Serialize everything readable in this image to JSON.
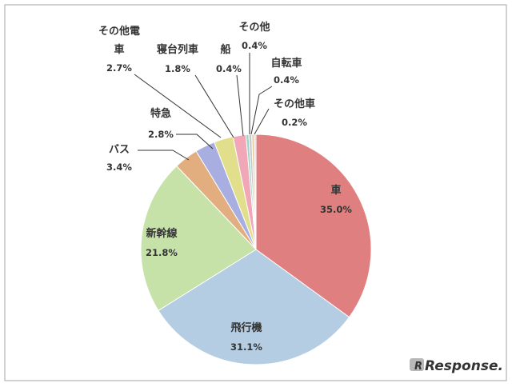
{
  "chart_data": {
    "type": "pie",
    "slices": [
      {
        "label": "車",
        "value": 35.0,
        "value_label": "35.0%",
        "color": "#e07f7f"
      },
      {
        "label": "飛行機",
        "value": 31.1,
        "value_label": "31.1%",
        "color": "#b4cde3"
      },
      {
        "label": "新幹線",
        "value": 21.8,
        "value_label": "21.8%",
        "color": "#c6e2a8"
      },
      {
        "label": "バス",
        "value": 3.4,
        "value_label": "3.4%",
        "color": "#e2ae7f"
      },
      {
        "label": "特急",
        "value": 2.8,
        "value_label": "2.8%",
        "color": "#a8aee0"
      },
      {
        "label": "その他電車",
        "value": 2.7,
        "value_label": "2.7%",
        "color": "#e2df8c"
      },
      {
        "label": "寝台列車",
        "value": 1.8,
        "value_label": "1.8%",
        "color": "#f0a8b8"
      },
      {
        "label": "船",
        "value": 0.4,
        "value_label": "0.4%",
        "color": "#9ed2c6"
      },
      {
        "label": "その他",
        "value": 0.4,
        "value_label": "0.4%",
        "color": "#c8c8c8"
      },
      {
        "label": "自転車",
        "value": 0.4,
        "value_label": "0.4%",
        "color": "#e8d2a8"
      },
      {
        "label": "その他車",
        "value": 0.2,
        "value_label": "0.2%",
        "color": "#d8c0e2"
      }
    ],
    "start_angle": "12 o'clock",
    "direction": "clockwise",
    "labels": "outside with leader lines for small slices, inside for large slices"
  },
  "watermark": {
    "text": "Response."
  }
}
